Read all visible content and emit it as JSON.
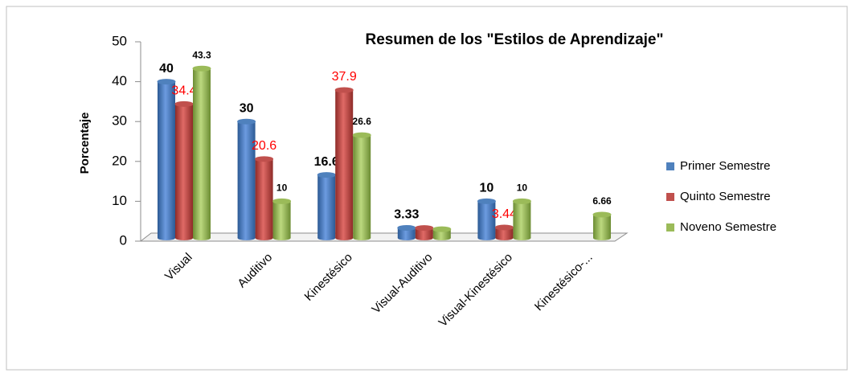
{
  "chart_data": {
    "type": "bar",
    "title": "Resumen de los \"Estilos de Aprendizaje\"",
    "y_label": "Porcentaje",
    "categories": [
      "Visual",
      "Auditivo",
      "Kinestésico",
      "Visual-Auditivo",
      "Visual-Kinestésico",
      "Kinestésico-..."
    ],
    "series": [
      {
        "name": "Primer Semestre",
        "color": "#4f81bd",
        "values": [
          40,
          30,
          16.6,
          3.33,
          10,
          null
        ],
        "value_labels": [
          "40",
          "30",
          "16.6",
          "3.33",
          "10",
          null
        ]
      },
      {
        "name": "Quinto Semestre",
        "color": "#c0504d",
        "values": [
          34.4,
          20.6,
          37.9,
          3.3,
          3.44,
          null
        ],
        "value_labels": [
          "34.4",
          "20.6",
          "37.9",
          null,
          "3.44",
          null
        ]
      },
      {
        "name": "Noveno Semestre",
        "color": "#9bbb59",
        "values": [
          43.3,
          10,
          26.6,
          3,
          10,
          6.66
        ],
        "value_labels": [
          "43.3",
          "10",
          "26.6",
          null,
          "10",
          "6.66"
        ]
      }
    ],
    "ylim": [
      0,
      50
    ],
    "yticks": [
      0,
      10,
      20,
      30,
      40,
      50
    ],
    "legend": "right"
  }
}
